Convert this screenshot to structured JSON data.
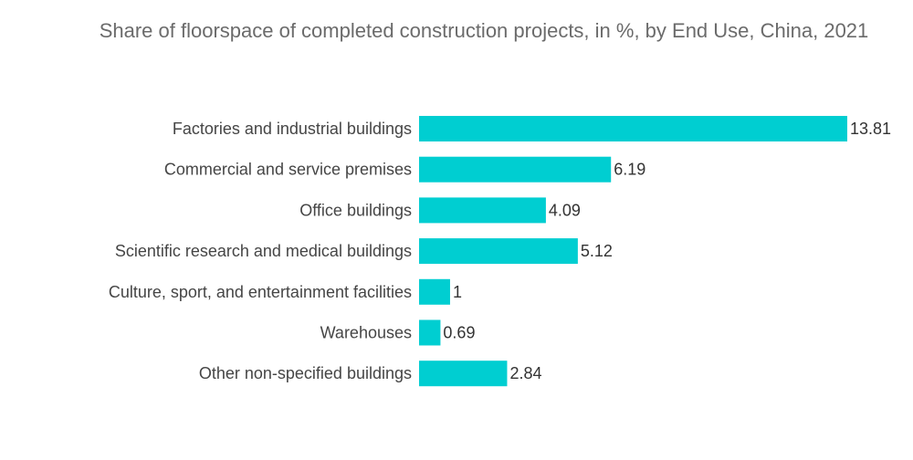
{
  "chart_data": {
    "type": "bar",
    "orientation": "horizontal",
    "title": "Share of floorspace of completed construction projects, in %, by End Use, China, 2021",
    "xlabel": "",
    "ylabel": "",
    "categories": [
      "Factories and industrial buildings",
      "Commercial and service premises",
      "Office buildings",
      "Scientific research and medical buildings",
      "Culture, sport, and entertainment facilities",
      "Warehouses",
      "Other non-specified buildings"
    ],
    "values": [
      13.81,
      6.19,
      4.09,
      5.12,
      1,
      0.69,
      2.84
    ],
    "value_labels": [
      "13.81",
      "6.19",
      "4.09",
      "5.12",
      "1",
      "0.69",
      "2.84"
    ],
    "xlim": [
      0,
      13.81
    ],
    "grid": false,
    "colors": {
      "bar": "#00CED1"
    }
  }
}
